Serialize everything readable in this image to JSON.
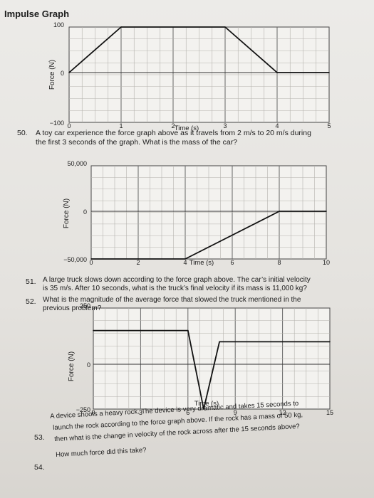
{
  "header": {
    "title": "Impulse Graph"
  },
  "graphs": [
    {
      "ylabel": "Force (N)",
      "xlabel": "Time (s)",
      "y_ticks": [
        "100",
        "0",
        "−100"
      ],
      "x_ticks": [
        "0",
        "1",
        "2",
        "3",
        "4",
        "5"
      ]
    },
    {
      "ylabel": "Force (N)",
      "xlabel": "Time (s)",
      "y_ticks": [
        "50,000",
        "0",
        "−50,000"
      ],
      "x_ticks": [
        "0",
        "2",
        "4",
        "6",
        "8",
        "10"
      ]
    },
    {
      "ylabel": "Force (N)",
      "xlabel": "Time (s)",
      "y_ticks": [
        "250",
        "0",
        "−250"
      ],
      "x_ticks": [
        "0",
        "3",
        "6",
        "9",
        "12",
        "15"
      ]
    }
  ],
  "questions": {
    "q50_num": "50.",
    "q50_line1": "A toy car experience the force graph above as it travels from 2 m/s to 20 m/s during",
    "q50_line2": "the first 3 seconds of the graph. What is the mass of the car?",
    "q51_num": "51.",
    "q51_line1": "A large truck slows down according to the force graph above. The car’s initial velocity",
    "q51_line2": "is 35 m/s. After 10 seconds, what is the truck’s final velocity if its mass is 11,000 kg?",
    "q52_num": "52.",
    "q52_line1": "What is the magnitude of the average force that slowed the truck mentioned in the",
    "q52_line2": "previous problem?",
    "q53_num": "53.",
    "q53_line1": "A device shoots a heavy rock. The device is very dramatic and takes 15 seconds to",
    "q53_line2": "launch the rock according to the force graph above. If the rock has a mass of 50 kg,",
    "q53_line3": "then what is the change in velocity of the rock across after the 15 seconds above?",
    "q54_num": "54.",
    "q54_line1": "How much force did this take?"
  },
  "chart_data": [
    {
      "type": "line",
      "title": "Impulse Graph",
      "xlabel": "Time (s)",
      "ylabel": "Force (N)",
      "xlim": [
        0,
        5
      ],
      "ylim": [
        -100,
        100
      ],
      "x": [
        0,
        1,
        3,
        4,
        5
      ],
      "y": [
        0,
        100,
        100,
        0,
        0
      ],
      "grid": true
    },
    {
      "type": "line",
      "xlabel": "Time (s)",
      "ylabel": "Force (N)",
      "xlim": [
        0,
        10
      ],
      "ylim": [
        -50000,
        50000
      ],
      "x": [
        0,
        4,
        8,
        10
      ],
      "y": [
        -50000,
        -50000,
        0,
        0
      ],
      "grid": true
    },
    {
      "type": "line",
      "xlabel": "Time (s)",
      "ylabel": "Force (N)",
      "xlim": [
        0,
        15
      ],
      "ylim": [
        -250,
        250
      ],
      "x": [
        0,
        6,
        7,
        8,
        15
      ],
      "y": [
        150,
        150,
        -250,
        100,
        100
      ],
      "grid": true
    }
  ]
}
